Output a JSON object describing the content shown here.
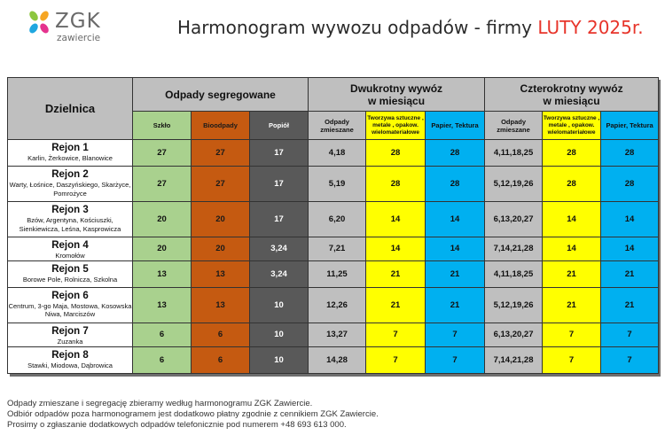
{
  "logo": {
    "name": "ZGK",
    "sub": "zawiercie"
  },
  "title": {
    "main": "Harmonogram wywozu odpadów - firmy ",
    "accent": "LUTY 2025r."
  },
  "headers": {
    "district": "Dzielnica",
    "segregated": "Odpady segregowane",
    "twice_line1": "Dwukrotny wywóz",
    "twice_line2": "w miesiącu",
    "four_line1": "Czterokrotny wywóz",
    "four_line2": "w miesiącu",
    "glass": "Szkło",
    "bio": "Bioodpady",
    "ash": "Popiół",
    "mixed": "Odpady zmieszane",
    "plastics": "Tworzywa sztuczne , metale , opakow. wielomateriałowe",
    "paper": "Papier, Tektura",
    "mixed4": "Odpady zmieszane",
    "plastics4": "Tworzywa sztuczne , metale , opakow. wielomateriałowe",
    "paper4": "Papier, Tektura"
  },
  "rows": [
    {
      "name": "Rejon 1",
      "streets": "Karlin, Żerkowice, Blanowice",
      "glass": "27",
      "bio": "27",
      "ash": "17",
      "mixed": "4,18",
      "plastics": "28",
      "paper": "28",
      "mixed4": "4,11,18,25",
      "plastics4": "28",
      "paper4": "28"
    },
    {
      "name": "Rejon 2",
      "streets": "Warty, Łośnice, Daszyńskiego, Skarżyce, Pomrożyce",
      "glass": "27",
      "bio": "27",
      "ash": "17",
      "mixed": "5,19",
      "plastics": "28",
      "paper": "28",
      "mixed4": "5,12,19,26",
      "plastics4": "28",
      "paper4": "28"
    },
    {
      "name": "Rejon 3",
      "streets": "Bzów, Argentyna, Kościuszki, Sienkiewicza, Leśna, Kasprowicza",
      "glass": "20",
      "bio": "20",
      "ash": "17",
      "mixed": "6,20",
      "plastics": "14",
      "paper": "14",
      "mixed4": "6,13,20,27",
      "plastics4": "14",
      "paper4": "14"
    },
    {
      "name": "Rejon 4",
      "streets": "Kromołów",
      "glass": "20",
      "bio": "20",
      "ash": "3,24",
      "mixed": "7,21",
      "plastics": "14",
      "paper": "14",
      "mixed4": "7,14,21,28",
      "plastics4": "14",
      "paper4": "14"
    },
    {
      "name": "Rejon 5",
      "streets": "Borowe Pole, Rolnicza, Szkolna",
      "glass": "13",
      "bio": "13",
      "ash": "3,24",
      "mixed": "11,25",
      "plastics": "21",
      "paper": "21",
      "mixed4": "4,11,18,25",
      "plastics4": "21",
      "paper4": "21"
    },
    {
      "name": "Rejon 6",
      "streets": "Centrum, 3-go Maja, Mostowa, Kosowska Niwa, Marciszów",
      "glass": "13",
      "bio": "13",
      "ash": "10",
      "mixed": "12,26",
      "plastics": "21",
      "paper": "21",
      "mixed4": "5,12,19,26",
      "plastics4": "21",
      "paper4": "21"
    },
    {
      "name": "Rejon 7",
      "streets": "Zuzanka",
      "glass": "6",
      "bio": "6",
      "ash": "10",
      "mixed": "13,27",
      "plastics": "7",
      "paper": "7",
      "mixed4": "6,13,20,27",
      "plastics4": "7",
      "paper4": "7"
    },
    {
      "name": "Rejon 8",
      "streets": "Stawki, Miodowa, Dąbrowica",
      "glass": "6",
      "bio": "6",
      "ash": "10",
      "mixed": "14,28",
      "plastics": "7",
      "paper": "7",
      "mixed4": "7,14,21,28",
      "plastics4": "7",
      "paper4": "7"
    }
  ],
  "footer": [
    "Odpady zmieszane i segregację zbieramy według harmonogramu ZGK Zawiercie.",
    "Odbiór odpadów poza harmonogramem jest dodatkowo płatny zgodnie z cennikiem ZGK Zawiercie.",
    "Prosimy o zgłaszanie dodatkowych odpadów telefonicznie pod numerem +48 693 613 000."
  ],
  "colors": {
    "glass": "#a9d18e",
    "bio": "#c55a11",
    "ash": "#595959",
    "mixed": "#bfbfbf",
    "plastics": "#ffff00",
    "paper": "#00b0f0",
    "accent": "#e7342a"
  }
}
